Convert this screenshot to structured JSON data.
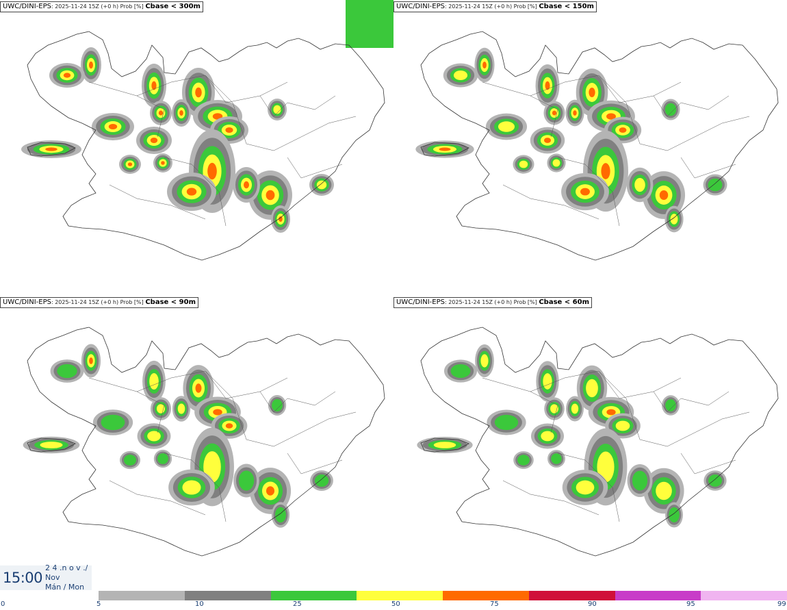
{
  "panels": [
    {
      "model": "UWC/DINI-EPS",
      "subtitle": ": 2025-11-24 15Z (+0 h) Prob [%] ",
      "threshold": "Cbase < 300m",
      "scale": 1.0
    },
    {
      "model": "UWC/DINI-EPS",
      "subtitle": ": 2025-11-24 15Z (+0 h) Prob [%] ",
      "threshold": "Cbase < 150m",
      "scale": 0.85
    },
    {
      "model": "UWC/DINI-EPS",
      "subtitle": ": 2025-11-24 15Z (+0 h) Prob [%] ",
      "threshold": "Cbase < 90m",
      "scale": 0.7
    },
    {
      "model": "UWC/DINI-EPS",
      "subtitle": ": 2025-11-24 15Z (+0 h) Prob [%] ",
      "threshold": "Cbase < 60m",
      "scale": 0.62
    }
  ],
  "time": {
    "clock": "15:00",
    "line1": "2 4 .n o v ./",
    "line2": "Nov",
    "line3": "Mán / Mon"
  },
  "colorbar": {
    "ticks": [
      "0",
      "5",
      "10",
      "25",
      "50",
      "75",
      "90",
      "95",
      "99"
    ],
    "colors": [
      "#b4b4b4",
      "#808080",
      "#3bc83b",
      "#ffff3c",
      "#ff6a00",
      "#d0103a",
      "#c83cc8",
      "#f0b4f0"
    ]
  },
  "palette": {
    "p10": "#b4b4b4",
    "p25": "#808080",
    "p50": "#3bc83b",
    "p75": "#ffff3c",
    "p90": "#ff6a00",
    "p95": "#d0103a",
    "p99": "#c83cc8"
  }
}
